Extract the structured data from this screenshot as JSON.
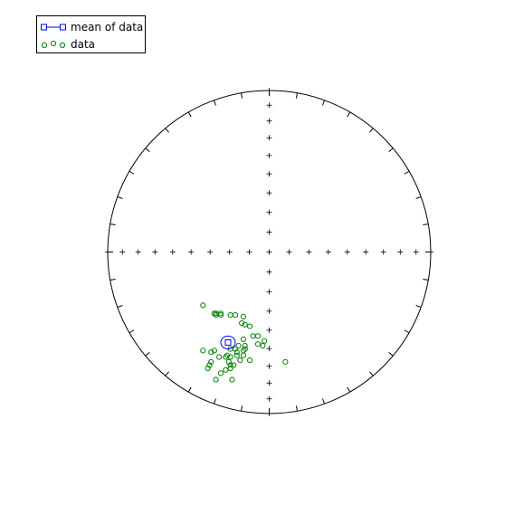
{
  "chart_data": {
    "type": "scatter",
    "projection": "equal-area stereonet",
    "legend": {
      "placement": "top-left",
      "entries": [
        {
          "label": "mean of data",
          "marker": "square",
          "line": true,
          "color": "#0000ff"
        },
        {
          "label": "data",
          "marker": "circle",
          "line": false,
          "color": "#008000"
        }
      ]
    },
    "series": [
      {
        "name": "data",
        "color": "#008000",
        "points": [
          [
            -0.41,
            -0.33
          ],
          [
            -0.33,
            -0.38
          ],
          [
            -0.3,
            -0.38
          ],
          [
            -0.33,
            -0.39
          ],
          [
            -0.3,
            -0.39
          ],
          [
            -0.34,
            -0.38
          ],
          [
            -0.24,
            -0.39
          ],
          [
            -0.21,
            -0.39
          ],
          [
            -0.16,
            -0.4
          ],
          [
            -0.17,
            -0.44
          ],
          [
            -0.15,
            -0.45
          ],
          [
            -0.12,
            -0.46
          ],
          [
            -0.07,
            -0.52
          ],
          [
            -0.1,
            -0.52
          ],
          [
            -0.16,
            -0.54
          ],
          [
            -0.15,
            -0.58
          ],
          [
            -0.19,
            -0.58
          ],
          [
            -0.21,
            -0.6
          ],
          [
            -0.2,
            -0.62
          ],
          [
            -0.2,
            -0.64
          ],
          [
            -0.18,
            -0.67
          ],
          [
            -0.24,
            -0.65
          ],
          [
            -0.26,
            -0.64
          ],
          [
            -0.27,
            -0.65
          ],
          [
            -0.31,
            -0.65
          ],
          [
            -0.34,
            -0.61
          ],
          [
            -0.36,
            -0.62
          ],
          [
            -0.41,
            -0.61
          ],
          [
            -0.37,
            -0.7
          ],
          [
            -0.36,
            -0.68
          ],
          [
            -0.38,
            -0.72
          ],
          [
            -0.3,
            -0.75
          ],
          [
            -0.27,
            -0.73
          ],
          [
            -0.24,
            -0.72
          ],
          [
            -0.25,
            -0.68
          ],
          [
            -0.24,
            -0.7
          ],
          [
            -0.22,
            -0.7
          ],
          [
            -0.12,
            -0.67
          ],
          [
            -0.16,
            -0.61
          ],
          [
            -0.15,
            -0.6
          ],
          [
            -0.16,
            -0.64
          ],
          [
            -0.07,
            -0.57
          ],
          [
            -0.03,
            -0.55
          ],
          [
            -0.04,
            -0.58
          ],
          [
            0.1,
            -0.68
          ],
          [
            -0.23,
            -0.79
          ],
          [
            -0.33,
            -0.79
          ],
          [
            -0.24,
            -0.6
          ]
        ]
      }
    ],
    "mean": {
      "name": "mean of data",
      "color": "#0000ff",
      "x": -0.255,
      "y": -0.56,
      "confidence_ellipse": {
        "rx": 0.045,
        "ry": 0.04
      }
    },
    "grid": {
      "crosshair_ticks": true,
      "rim_ticks_deg": 10
    }
  }
}
